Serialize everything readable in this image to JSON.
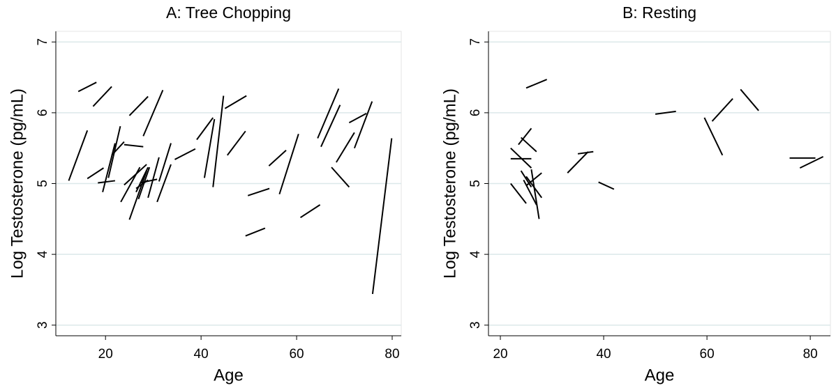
{
  "chart_data": [
    {
      "type": "segment",
      "title": "A:  Tree Chopping",
      "x_label": "Age",
      "y_label": "Log Testosterone (pg/mL)",
      "xlim": [
        9.6,
        81.9
      ],
      "ylim": [
        2.85,
        7.15
      ],
      "xticks": [
        20,
        40,
        60,
        80
      ],
      "yticks": [
        3,
        4,
        5,
        6,
        7
      ],
      "grid": true,
      "color": "#000000",
      "segments": [
        {
          "x": [
            12.3,
            16.2
          ],
          "y": [
            5.04,
            5.75
          ]
        },
        {
          "x": [
            14.3,
            18.1
          ],
          "y": [
            6.3,
            6.43
          ]
        },
        {
          "x": [
            17.4,
            21.3
          ],
          "y": [
            6.09,
            6.37
          ]
        },
        {
          "x": [
            16.2,
            19.6
          ],
          "y": [
            5.07,
            5.22
          ]
        },
        {
          "x": [
            18.4,
            22.0
          ],
          "y": [
            5.01,
            5.04
          ]
        },
        {
          "x": [
            19.4,
            22.0
          ],
          "y": [
            4.88,
            5.57
          ]
        },
        {
          "x": [
            20.6,
            23.1
          ],
          "y": [
            5.08,
            5.81
          ]
        },
        {
          "x": [
            21.3,
            23.9
          ],
          "y": [
            5.4,
            5.59
          ]
        },
        {
          "x": [
            23.2,
            27.2
          ],
          "y": [
            4.74,
            5.23
          ]
        },
        {
          "x": [
            23.9,
            27.9
          ],
          "y": [
            5.55,
            5.52
          ]
        },
        {
          "x": [
            25.0,
            28.9
          ],
          "y": [
            5.96,
            6.23
          ]
        },
        {
          "x": [
            23.9,
            28.6
          ],
          "y": [
            4.98,
            5.27
          ]
        },
        {
          "x": [
            25.0,
            28.6
          ],
          "y": [
            4.49,
            5.18
          ]
        },
        {
          "x": [
            26.4,
            28.9
          ],
          "y": [
            4.88,
            5.23
          ]
        },
        {
          "x": [
            26.9,
            29.2
          ],
          "y": [
            4.78,
            5.23
          ]
        },
        {
          "x": [
            26.4,
            28.9
          ],
          "y": [
            4.93,
            5.05
          ]
        },
        {
          "x": [
            27.2,
            30.8
          ],
          "y": [
            5.01,
            5.06
          ]
        },
        {
          "x": [
            27.9,
            32.0
          ],
          "y": [
            5.67,
            6.32
          ]
        },
        {
          "x": [
            28.9,
            31.2
          ],
          "y": [
            4.8,
            5.37
          ]
        },
        {
          "x": [
            30.8,
            33.7
          ],
          "y": [
            4.74,
            5.27
          ]
        },
        {
          "x": [
            31.2,
            33.7
          ],
          "y": [
            5.03,
            5.57
          ]
        },
        {
          "x": [
            34.5,
            38.8
          ],
          "y": [
            5.34,
            5.49
          ]
        },
        {
          "x": [
            39.1,
            42.5
          ],
          "y": [
            5.62,
            5.93
          ]
        },
        {
          "x": [
            40.7,
            42.8
          ],
          "y": [
            5.08,
            5.91
          ]
        },
        {
          "x": [
            42.5,
            44.7
          ],
          "y": [
            4.95,
            6.24
          ]
        },
        {
          "x": [
            45.0,
            49.5
          ],
          "y": [
            6.06,
            6.24
          ]
        },
        {
          "x": [
            45.5,
            49.3
          ],
          "y": [
            5.4,
            5.74
          ]
        },
        {
          "x": [
            49.8,
            54.3
          ],
          "y": [
            4.83,
            4.93
          ]
        },
        {
          "x": [
            49.3,
            53.4
          ],
          "y": [
            4.26,
            4.37
          ]
        },
        {
          "x": [
            54.2,
            57.8
          ],
          "y": [
            5.25,
            5.47
          ]
        },
        {
          "x": [
            56.4,
            60.4
          ],
          "y": [
            4.85,
            5.7
          ]
        },
        {
          "x": [
            60.8,
            64.9
          ],
          "y": [
            4.52,
            4.7
          ]
        },
        {
          "x": [
            64.4,
            68.8
          ],
          "y": [
            5.64,
            6.34
          ]
        },
        {
          "x": [
            65.1,
            69.1
          ],
          "y": [
            5.52,
            6.11
          ]
        },
        {
          "x": [
            67.3,
            71.0
          ],
          "y": [
            5.23,
            4.95
          ]
        },
        {
          "x": [
            68.3,
            72.1
          ],
          "y": [
            5.3,
            5.72
          ]
        },
        {
          "x": [
            71.0,
            74.6
          ],
          "y": [
            5.86,
            5.99
          ]
        },
        {
          "x": [
            72.1,
            75.8
          ],
          "y": [
            5.5,
            6.16
          ]
        },
        {
          "x": [
            75.9,
            79.9
          ],
          "y": [
            3.44,
            5.64
          ]
        }
      ]
    },
    {
      "type": "segment",
      "title": "B:  Resting",
      "x_label": "Age",
      "y_label": "Log Testosterone (pg/mL)",
      "xlim": [
        17.7,
        83.9
      ],
      "ylim": [
        2.85,
        7.15
      ],
      "xticks": [
        20,
        40,
        60,
        80
      ],
      "yticks": [
        3,
        4,
        5,
        6,
        7
      ],
      "grid": true,
      "color": "#000000",
      "segments": [
        {
          "x": [
            22,
            25
          ],
          "y": [
            5.0,
            4.72
          ]
        },
        {
          "x": [
            22,
            26
          ],
          "y": [
            5.5,
            5.22
          ]
        },
        {
          "x": [
            22,
            26
          ],
          "y": [
            5.35,
            5.35
          ]
        },
        {
          "x": [
            24,
            26
          ],
          "y": [
            5.18,
            4.95
          ]
        },
        {
          "x": [
            24,
            27
          ],
          "y": [
            5.65,
            5.45
          ]
        },
        {
          "x": [
            23.5,
            26
          ],
          "y": [
            5.55,
            5.78
          ]
        },
        {
          "x": [
            25,
            28
          ],
          "y": [
            4.97,
            5.15
          ]
        },
        {
          "x": [
            25,
            28
          ],
          "y": [
            5.1,
            4.8
          ]
        },
        {
          "x": [
            26,
            27.5
          ],
          "y": [
            5.2,
            4.5
          ]
        },
        {
          "x": [
            24.5,
            27
          ],
          "y": [
            5.05,
            4.7
          ]
        },
        {
          "x": [
            25,
            29
          ],
          "y": [
            6.35,
            6.47
          ]
        },
        {
          "x": [
            33,
            37
          ],
          "y": [
            5.15,
            5.45
          ]
        },
        {
          "x": [
            35,
            38
          ],
          "y": [
            5.42,
            5.45
          ]
        },
        {
          "x": [
            39,
            42
          ],
          "y": [
            5.02,
            4.92
          ]
        },
        {
          "x": [
            50,
            54
          ],
          "y": [
            5.98,
            6.02
          ]
        },
        {
          "x": [
            59.5,
            63
          ],
          "y": [
            5.93,
            5.4
          ]
        },
        {
          "x": [
            61,
            65
          ],
          "y": [
            5.88,
            6.2
          ]
        },
        {
          "x": [
            66.5,
            70
          ],
          "y": [
            6.33,
            6.03
          ]
        },
        {
          "x": [
            76,
            81
          ],
          "y": [
            5.36,
            5.36
          ]
        },
        {
          "x": [
            78,
            82.5
          ],
          "y": [
            5.22,
            5.38
          ]
        }
      ]
    }
  ]
}
